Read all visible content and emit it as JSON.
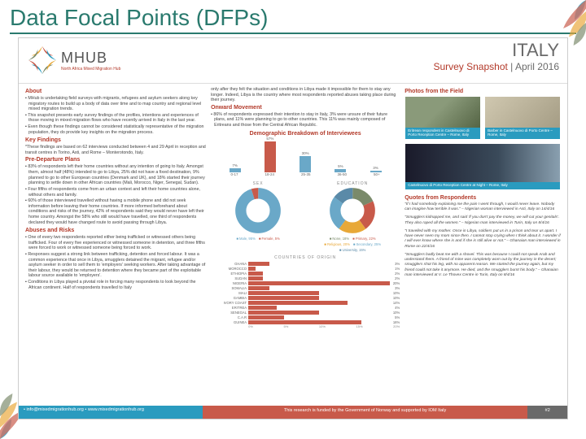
{
  "slide_title": "Data Focal Points (DFPs)",
  "logo": {
    "main": "MHUB",
    "sub": "North Africa Mixed Migration Hub"
  },
  "header": {
    "country": "ITALY",
    "line_a": "Survey Snapshot",
    "line_b": " | April 2016"
  },
  "sections": {
    "about": "About",
    "key": "Key Findings",
    "pre": "Pre-Departure Plans",
    "abuse": "Abuses and Risks",
    "onward": "Onward Movement",
    "demo": "Demographic Breakdown of Interviewees",
    "photos": "Photos from the Field",
    "quotes": "Quotes from Respondents"
  },
  "left": {
    "about": [
      "▪ MHub is undertaking field surveys with migrants, refugees and asylum seekers along key migratory routes to build up a body of data over time and to map country and regional level mixed migration trends.",
      "▪ This snapshot presents early survey findings of the profiles, intentions and experiences of those moving in mixed migration flows who have recently arrived in Italy in the last year.",
      "▪ Even though these findings cannot be considered statistically representative of the migration population, they do provide key insights on the migration process."
    ],
    "key_intro": "*These findings are based on 62 interviews conducted between 4 and 29 April in reception and transit centres in Torino, Asti, and Rome – Monterotondo, Italy.",
    "pre": [
      "▪ 83% of respondents left their home countries without any intention of going to Italy. Amongst them, almost half (48%) intended to go to Libya, 25% did not have a fixed destination, 9% planned to go to other European countries (Denmark and UK), and 18% started their journey planning to settle down in other African countries (Mali, Morocco, Niger, Senegal, Sudan).",
      "▪ Four fifths of respondents come from an urban context and left their home countries alone, without others and family.",
      "▪ 60% of those interviewed travelled without having a mobile phone and did not seek information before leaving their home countries. If more informed beforehand about conditions and risks of the journey, 42% of respondents said they would never have left their home country. Amongst the 58% who still would have travelled, one third of respondents declared they would have changed route to avoid passing through Libya."
    ],
    "abuse": [
      "▪ One of every two respondents reported either being trafficked or witnessed others being trafficked. Four of every five experienced or witnessed someone in detention, and three fifths were forced to work or witnessed someone being forced to work.",
      "▪ Responses suggest a strong link between trafficking, detention and forced labour. It was a common experience that once in Libya, smugglers detained the migrant, refugee and/or asylum seeker in order to sell them to 'employers' seeking workers. After taking advantage of their labour, they would be returned to detention where they became part of the exploitable labour source available to 'employers'.",
      "▪ Conditions in Libya played a pivotal role in forcing many respondents to look beyond the African continent. Half of respondents travelled to Italy"
    ]
  },
  "mid": {
    "cont": "only after they felt the situation and conditions in Libya made it impossible for them to stay any longer. Indeed, Libya is the country where most respondents reported abuses taking place during their journey.",
    "onward": "▪ 86% of respondents expressed their intention to stay in Italy, 3% were unsure of their future plans, and 11% were planning to go to other countries. This 11% was mainly composed of Eritreans and those from the Central African Republic."
  },
  "age_chart": {
    "type": "bar",
    "bars": [
      {
        "label": "0-17",
        "pct": 7,
        "color": "#6aa8c8"
      },
      {
        "label": "18-24",
        "pct": 57,
        "color": "#c85a4a"
      },
      {
        "label": "25-35",
        "pct": 30,
        "color": "#6aa8c8"
      },
      {
        "label": "36-50",
        "pct": 5,
        "color": "#6aa8c8"
      },
      {
        "label": "50+",
        "pct": 3,
        "color": "#6aa8c8"
      }
    ],
    "max": 60
  },
  "donut_sex": {
    "title": "SEX",
    "slices": [
      {
        "label": "Male, 95%",
        "pct": 95,
        "color": "#6aa8c8"
      },
      {
        "label": "Female, 5%",
        "pct": 5,
        "color": "#c85a4a"
      }
    ]
  },
  "donut_edu": {
    "title": "EDUCATION",
    "slices": [
      {
        "label": "None, 18%",
        "pct": 18,
        "color": "#7a8a6a"
      },
      {
        "label": "Primary, 22%",
        "pct": 22,
        "color": "#c85a4a"
      },
      {
        "label": "Religious, 20%",
        "pct": 20,
        "color": "#e8a838"
      },
      {
        "label": "Secondary, 25%",
        "pct": 25,
        "color": "#6aa8c8"
      },
      {
        "label": "University, 15%",
        "pct": 15,
        "color": "#5a8aa8"
      }
    ]
  },
  "origin": {
    "title": "COUNTRIES OF ORIGIN",
    "rows": [
      {
        "label": "GHANA",
        "pct": 3
      },
      {
        "label": "MOROCCO",
        "pct": 1
      },
      {
        "label": "ETHIOPIA",
        "pct": 2
      },
      {
        "label": "SUDAN",
        "pct": 2
      },
      {
        "label": "NIGERIA",
        "pct": 20
      },
      {
        "label": "SOMALIA",
        "pct": 3
      },
      {
        "label": "MALI",
        "pct": 10
      },
      {
        "label": "GAMBIA",
        "pct": 10
      },
      {
        "label": "IVORY COAST",
        "pct": 14
      },
      {
        "label": "ERITREA",
        "pct": 4
      },
      {
        "label": "SENEGAL",
        "pct": 10
      },
      {
        "label": "C.A.R",
        "pct": 5
      },
      {
        "label": "GUINEA",
        "pct": 16
      }
    ],
    "ticks": [
      "0%",
      "5%",
      "10%",
      "15%",
      "20%"
    ],
    "max": 20
  },
  "photos": {
    "cap1": "Eritrean respondent in Castelnuovo di Porto Reception Centre – Rome, Italy",
    "cap2": "Barber in Castelnuovo di Porto Centre – Rome, Italy",
    "cap3": "Castelnuovo di Porto Reception Centre at Night – Rome, Italy"
  },
  "quotes": [
    "\"If I had somebody explaining me the pain I went through, I would never leave. Nobody can imagine how terrible it was.\" – Nigerian woman interviewed in Asti, Italy on 14/4/16",
    "\"Smugglers kidnapped me, and said 'if you don't pay the money, we will cut your genitals'. They also raped all the women.\" – Nigerian man interviewed in Turin, Italy on 8/4/16",
    "\"I travelled with my mother. Once in Libya, soldiers put us in a prison and tear us apart. I have never seen my mom since then. I cannot stop crying when I think about it. I wonder if I will ever know where she is and if she is still alive or not.\" – Ghanaian man interviewed in Rome on 22/4/16",
    "\"Smugglers badly beat me with a shovel. This was because I could not speak Arab and understand them. A friend of mine was completely worn out by the journey in the desert; smugglers shot his leg, with no apparent reason. We started the journey again, but my friend could not take it anymore. He died, and the smugglers burnt his body.\" – Ghanaian man interviewed at V. Le Thovex Centre in Turin, Italy on 8/4/16"
  ],
  "footer": {
    "a": "• info@mixedmigrationhub.org • www.mixedmigrationhub.org",
    "b": "This research is funded by the Government of Norway and supported by IOM Italy",
    "c": "#2"
  },
  "petal_colors": [
    "#2a9bbf",
    "#c85a4a",
    "#e8a838",
    "#7a8a6a"
  ]
}
